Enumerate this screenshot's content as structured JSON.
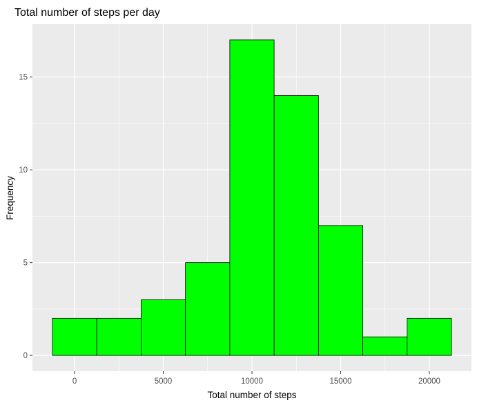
{
  "chart_data": {
    "type": "bar",
    "title": "Total number of steps per day",
    "xlabel": "Total number of steps",
    "ylabel": "Frequency",
    "bin_width": 2500,
    "bins": [
      {
        "start": -1250,
        "end": 1250,
        "count": 2
      },
      {
        "start": 1250,
        "end": 3750,
        "count": 2
      },
      {
        "start": 3750,
        "end": 6250,
        "count": 3
      },
      {
        "start": 6250,
        "end": 8750,
        "count": 5
      },
      {
        "start": 8750,
        "end": 11250,
        "count": 17
      },
      {
        "start": 11250,
        "end": 13750,
        "count": 14
      },
      {
        "start": 13750,
        "end": 16250,
        "count": 7
      },
      {
        "start": 16250,
        "end": 18750,
        "count": 1
      },
      {
        "start": 18750,
        "end": 21250,
        "count": 2
      }
    ],
    "xlim": [
      -2375,
      22375
    ],
    "ylim": [
      -0.85,
      17.85
    ],
    "x_ticks": [
      0,
      5000,
      10000,
      15000,
      20000
    ],
    "x_tick_labels": [
      "0",
      "5000",
      "10000",
      "15000",
      "20000"
    ],
    "y_ticks": [
      0,
      5,
      10,
      15
    ],
    "y_tick_labels": [
      "0",
      "5",
      "10",
      "15"
    ],
    "grid": true,
    "colors": {
      "bar_fill": "#00ff00",
      "bar_outline": "#000000",
      "panel_background": "#ebebeb",
      "grid_major": "#ffffff",
      "tick_text": "#4d4d4d"
    }
  }
}
